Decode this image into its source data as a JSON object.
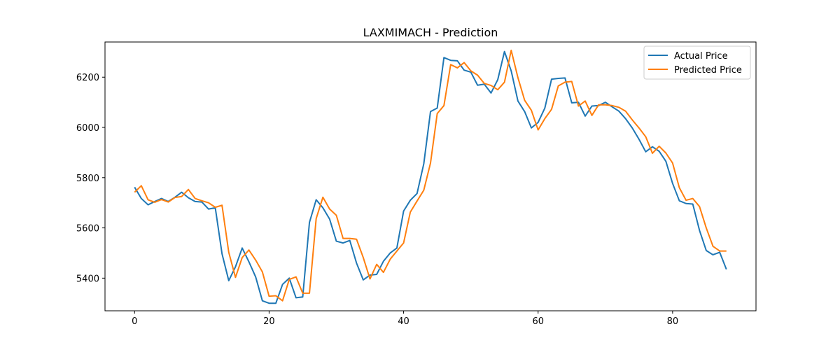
{
  "chart_data": {
    "type": "line",
    "title": "LAXMIMACH - Prediction",
    "xlabel": "",
    "ylabel": "",
    "xlim": [
      -4.4,
      92.4
    ],
    "ylim": [
      5270,
      6340
    ],
    "xticks": [
      0,
      20,
      40,
      60,
      80
    ],
    "yticks": [
      5400,
      5600,
      5800,
      6000,
      6200
    ],
    "grid": false,
    "legend_position": "upper right",
    "series": [
      {
        "name": "Actual Price",
        "color": "#1f77b4",
        "x": [
          0,
          1,
          2,
          3,
          4,
          5,
          6,
          7,
          8,
          9,
          10,
          11,
          12,
          13,
          14,
          15,
          16,
          17,
          18,
          19,
          20,
          21,
          22,
          23,
          24,
          25,
          26,
          27,
          28,
          29,
          30,
          31,
          32,
          33,
          34,
          35,
          36,
          37,
          38,
          39,
          40,
          41,
          42,
          43,
          44,
          45,
          46,
          47,
          48,
          49,
          50,
          51,
          52,
          53,
          54,
          55,
          56,
          57,
          58,
          59,
          60,
          61,
          62,
          63,
          64,
          65,
          66,
          67,
          68,
          69,
          70,
          71,
          72,
          73,
          74,
          75,
          76,
          77,
          78,
          79,
          80,
          81,
          82,
          83,
          84,
          85,
          86,
          87,
          88
        ],
        "y": [
          5762,
          5717,
          5692,
          5705,
          5717,
          5705,
          5722,
          5742,
          5720,
          5705,
          5703,
          5675,
          5680,
          5497,
          5390,
          5445,
          5520,
          5465,
          5405,
          5310,
          5300,
          5300,
          5375,
          5400,
          5322,
          5325,
          5622,
          5712,
          5680,
          5635,
          5547,
          5540,
          5550,
          5460,
          5393,
          5412,
          5415,
          5467,
          5500,
          5520,
          5667,
          5710,
          5737,
          5855,
          6063,
          6077,
          6278,
          6267,
          6265,
          6228,
          6220,
          6168,
          6172,
          6137,
          6190,
          6302,
          6225,
          6105,
          6063,
          5998,
          6020,
          6077,
          6192,
          6195,
          6197,
          6098,
          6100,
          6045,
          6085,
          6087,
          6100,
          6082,
          6065,
          6035,
          5998,
          5953,
          5903,
          5923,
          5905,
          5865,
          5777,
          5708,
          5697,
          5695,
          5590,
          5510,
          5493,
          5503,
          5435
        ]
      },
      {
        "name": "Predicted Price",
        "color": "#ff7f0e",
        "x": [
          0,
          1,
          2,
          3,
          4,
          5,
          6,
          7,
          8,
          9,
          10,
          11,
          12,
          13,
          14,
          15,
          16,
          17,
          18,
          19,
          20,
          21,
          22,
          23,
          24,
          25,
          26,
          27,
          28,
          29,
          30,
          31,
          32,
          33,
          34,
          35,
          36,
          37,
          38,
          39,
          40,
          41,
          42,
          43,
          44,
          45,
          46,
          47,
          48,
          49,
          50,
          51,
          52,
          53,
          54,
          55,
          56,
          57,
          58,
          59,
          60,
          61,
          62,
          63,
          64,
          65,
          66,
          67,
          68,
          69,
          70,
          71,
          72,
          73,
          74,
          75,
          76,
          77,
          78,
          79,
          80,
          81,
          82,
          83,
          84,
          85,
          86,
          87,
          88
        ],
        "y": [
          5742,
          5768,
          5712,
          5702,
          5713,
          5703,
          5721,
          5725,
          5753,
          5717,
          5708,
          5700,
          5682,
          5690,
          5503,
          5403,
          5482,
          5512,
          5472,
          5425,
          5328,
          5330,
          5310,
          5395,
          5405,
          5340,
          5340,
          5637,
          5722,
          5675,
          5650,
          5558,
          5558,
          5555,
          5482,
          5397,
          5455,
          5423,
          5475,
          5508,
          5540,
          5663,
          5707,
          5750,
          5858,
          6055,
          6087,
          6250,
          6237,
          6258,
          6225,
          6208,
          6175,
          6167,
          6150,
          6180,
          6307,
          6198,
          6108,
          6068,
          5990,
          6035,
          6072,
          6165,
          6180,
          6183,
          6085,
          6105,
          6048,
          6090,
          6090,
          6087,
          6080,
          6065,
          6030,
          5998,
          5963,
          5897,
          5925,
          5898,
          5858,
          5760,
          5710,
          5717,
          5685,
          5600,
          5527,
          5508,
          5508
        ]
      }
    ]
  }
}
